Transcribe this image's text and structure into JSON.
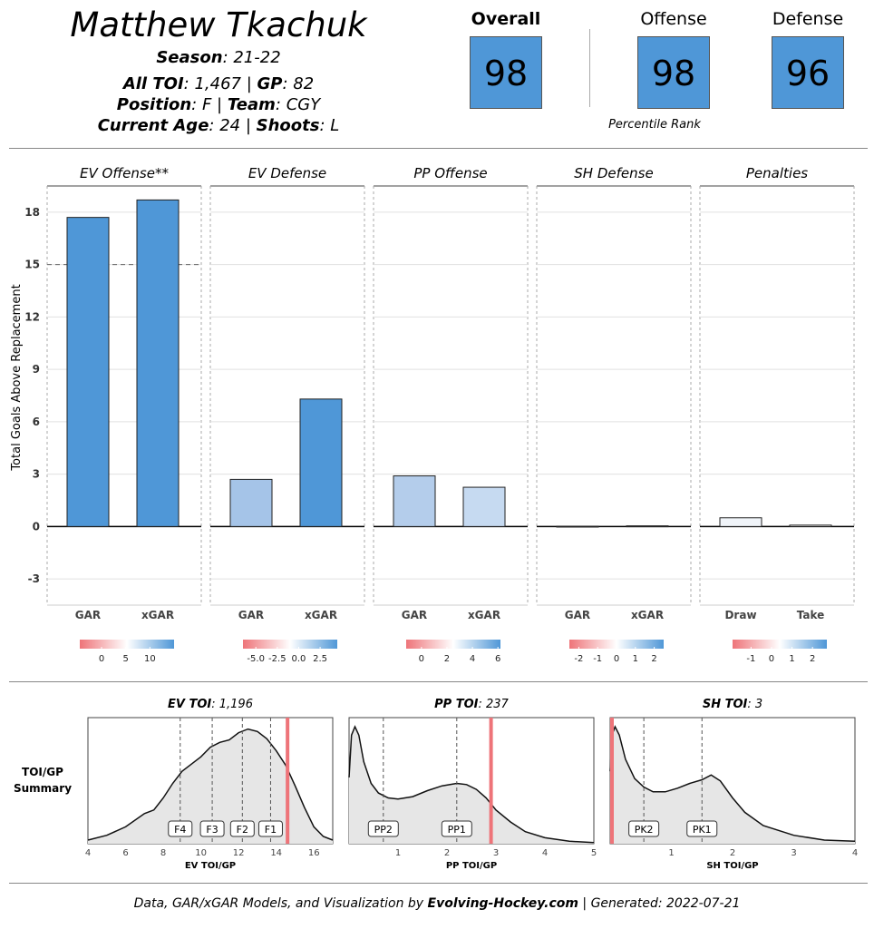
{
  "header": {
    "player_name": "Matthew Tkachuk",
    "season_label": "Season",
    "season_value": ": 21-22",
    "toi_label": "All TOI",
    "toi_value": ": 1,467 | ",
    "gp_label": "GP",
    "gp_value": ": 82",
    "position_label": "Position",
    "position_value": ": F | ",
    "team_label": "Team",
    "team_value": ": CGY",
    "age_label": "Current Age",
    "age_value": ": 24 | ",
    "shoots_label": "Shoots",
    "shoots_value": ": L"
  },
  "scores": {
    "overall_label": "Overall",
    "overall_value": "98",
    "offense_label": "Offense",
    "offense_value": "98",
    "defense_label": "Defense",
    "defense_value": "96",
    "percentile_label": "Percentile Rank",
    "box_color": "#4f97d7"
  },
  "chart_data": [
    {
      "type": "bar",
      "ylabel": "Total Goals Above Replacement",
      "ylim": [
        -4.5,
        19.5
      ],
      "yticks": [
        -3,
        0,
        3,
        6,
        9,
        12,
        15,
        18
      ],
      "reference_line": 15,
      "grid": true,
      "panels": [
        {
          "title": "EV Offense**",
          "categories": [
            "GAR",
            "xGAR"
          ],
          "values": [
            17.7,
            18.7
          ],
          "colors": [
            "#4f97d7",
            "#4f97d7"
          ],
          "legend": {
            "ticks": [
              "0",
              "5",
              "10"
            ],
            "tick_values": [
              0,
              5,
              10
            ],
            "min": -4.5,
            "max": 15
          }
        },
        {
          "title": "EV Defense",
          "categories": [
            "GAR",
            "xGAR"
          ],
          "values": [
            2.7,
            7.3
          ],
          "colors": [
            "#a5c4e8",
            "#4f97d7"
          ],
          "legend": {
            "ticks": [
              "-5.0",
              "-2.5",
              "0.0",
              "2.5"
            ],
            "tick_values": [
              -5,
              -2.5,
              0,
              2.5
            ],
            "min": -6.5,
            "max": 4.5
          }
        },
        {
          "title": "PP Offense",
          "categories": [
            "GAR",
            "xGAR"
          ],
          "values": [
            2.9,
            2.25
          ],
          "colors": [
            "#b4cdeb",
            "#c6daf1"
          ],
          "legend": {
            "ticks": [
              "0",
              "2",
              "4",
              "6"
            ],
            "tick_values": [
              0,
              2,
              4,
              6
            ],
            "min": -1.2,
            "max": 6.2
          }
        },
        {
          "title": "SH Defense",
          "categories": [
            "GAR",
            "xGAR"
          ],
          "values": [
            0.02,
            0.04
          ],
          "colors": [
            "#ffffff",
            "#ffffff"
          ],
          "legend": {
            "ticks": [
              "-2",
              "-1",
              "0",
              "1",
              "2"
            ],
            "tick_values": [
              -2,
              -1,
              0,
              1,
              2
            ],
            "min": -2.5,
            "max": 2.5
          }
        },
        {
          "title": "Penalties",
          "categories": [
            "Draw",
            "Take"
          ],
          "values": [
            0.5,
            0.08
          ],
          "colors": [
            "#f0f4f9",
            "#ffffff"
          ],
          "legend": {
            "ticks": [
              "-1",
              "0",
              "1",
              "2"
            ],
            "tick_values": [
              -1,
              0,
              1,
              2
            ],
            "min": -1.9,
            "max": 2.7
          }
        }
      ]
    },
    {
      "type": "area",
      "side_label": [
        "TOI/GP",
        "Summary"
      ],
      "panels": [
        {
          "title_label": "EV TOI",
          "title_value": ": 1,196",
          "xlabel": "EV TOI/GP",
          "xlim": [
            4,
            17
          ],
          "xticks": [
            4,
            6,
            8,
            10,
            12,
            14,
            16
          ],
          "player_value": 14.6,
          "markers": [
            {
              "label": "F4",
              "x": 8.9
            },
            {
              "label": "F3",
              "x": 10.6
            },
            {
              "label": "F2",
              "x": 12.2
            },
            {
              "label": "F1",
              "x": 13.7
            }
          ],
          "density": [
            [
              4,
              0.03
            ],
            [
              5,
              0.07
            ],
            [
              6,
              0.14
            ],
            [
              7,
              0.25
            ],
            [
              7.5,
              0.28
            ],
            [
              8,
              0.38
            ],
            [
              8.5,
              0.5
            ],
            [
              9,
              0.6
            ],
            [
              9.5,
              0.66
            ],
            [
              10,
              0.72
            ],
            [
              10.5,
              0.8
            ],
            [
              11,
              0.84
            ],
            [
              11.5,
              0.86
            ],
            [
              12,
              0.92
            ],
            [
              12.5,
              0.95
            ],
            [
              13,
              0.93
            ],
            [
              13.5,
              0.87
            ],
            [
              14,
              0.77
            ],
            [
              14.5,
              0.65
            ],
            [
              15,
              0.48
            ],
            [
              15.5,
              0.3
            ],
            [
              16,
              0.14
            ],
            [
              16.5,
              0.06
            ],
            [
              17,
              0.03
            ]
          ]
        },
        {
          "title_label": "PP TOI",
          "title_value": ": 237",
          "xlabel": "PP TOI/GP",
          "xlim": [
            0,
            5
          ],
          "xticks": [
            1,
            2,
            3,
            4,
            5
          ],
          "player_value": 2.9,
          "markers": [
            {
              "label": "PP2",
              "x": 0.7
            },
            {
              "label": "PP1",
              "x": 2.2
            }
          ],
          "density": [
            [
              0,
              0.55
            ],
            [
              0.05,
              0.9
            ],
            [
              0.12,
              0.97
            ],
            [
              0.2,
              0.9
            ],
            [
              0.3,
              0.68
            ],
            [
              0.45,
              0.5
            ],
            [
              0.6,
              0.42
            ],
            [
              0.8,
              0.38
            ],
            [
              1.0,
              0.37
            ],
            [
              1.3,
              0.39
            ],
            [
              1.6,
              0.44
            ],
            [
              1.9,
              0.48
            ],
            [
              2.2,
              0.5
            ],
            [
              2.4,
              0.49
            ],
            [
              2.6,
              0.45
            ],
            [
              2.8,
              0.38
            ],
            [
              3.0,
              0.28
            ],
            [
              3.3,
              0.18
            ],
            [
              3.6,
              0.1
            ],
            [
              4.0,
              0.05
            ],
            [
              4.5,
              0.02
            ],
            [
              5,
              0.01
            ]
          ]
        },
        {
          "title_label": "SH TOI",
          "title_value": ": 3",
          "xlabel": "SH TOI/GP",
          "xlim": [
            0,
            4
          ],
          "xticks": [
            1,
            2,
            3,
            4
          ],
          "player_value": 0.0,
          "markers": [
            {
              "label": "PK2",
              "x": 0.55
            },
            {
              "label": "PK1",
              "x": 1.5
            }
          ],
          "density": [
            [
              0,
              0.6
            ],
            [
              0.03,
              0.9
            ],
            [
              0.08,
              0.97
            ],
            [
              0.15,
              0.9
            ],
            [
              0.25,
              0.7
            ],
            [
              0.4,
              0.54
            ],
            [
              0.55,
              0.47
            ],
            [
              0.7,
              0.43
            ],
            [
              0.9,
              0.43
            ],
            [
              1.1,
              0.46
            ],
            [
              1.3,
              0.5
            ],
            [
              1.5,
              0.53
            ],
            [
              1.65,
              0.57
            ],
            [
              1.8,
              0.52
            ],
            [
              2.0,
              0.38
            ],
            [
              2.2,
              0.26
            ],
            [
              2.5,
              0.15
            ],
            [
              3.0,
              0.07
            ],
            [
              3.5,
              0.03
            ],
            [
              4,
              0.02
            ]
          ]
        }
      ]
    }
  ],
  "footer": {
    "prefix": "Data, GAR/xGAR Models, and Visualization by ",
    "brand": "Evolving-Hockey.com",
    "suffix": " | Generated: 2022-07-21"
  }
}
